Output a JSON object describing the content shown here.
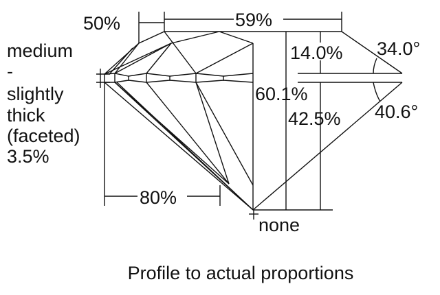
{
  "diagram": {
    "caption": "Profile to actual proportions",
    "girdle_label": [
      "medium",
      "-",
      "slightly",
      "thick",
      "(faceted)",
      "3.5%"
    ],
    "star_length": "50%",
    "table_size": "59%",
    "crown_height": "14.0%",
    "crown_angle": "34.0°",
    "total_depth": "60.1%",
    "pavilion_depth": "42.5%",
    "pavilion_angle": "40.6°",
    "lower_half_length": "80%",
    "culet": "none",
    "line_color": "#111111",
    "background": "#ffffff"
  }
}
